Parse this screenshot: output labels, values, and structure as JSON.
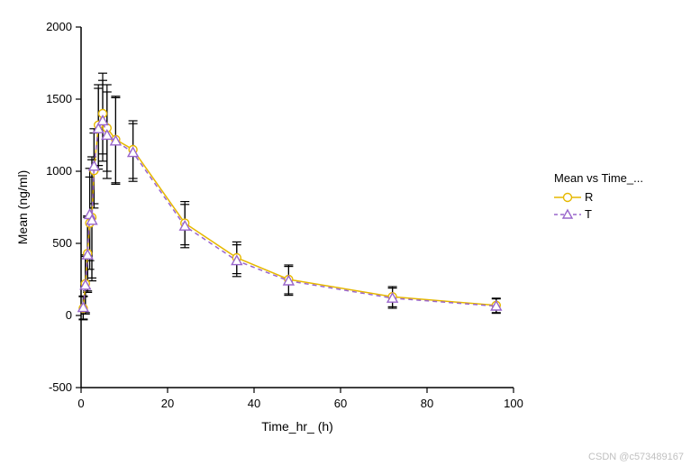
{
  "chart": {
    "type": "line-errorbar",
    "xlabel": "Time_hr_ (h)",
    "ylabel": "Mean (ng/ml)",
    "label_fontsize": 14,
    "tick_fontsize": 13,
    "xlim": [
      0,
      100
    ],
    "ylim": [
      -500,
      2000
    ],
    "xticks": [
      0,
      20,
      40,
      60,
      80,
      100
    ],
    "yticks": [
      -500,
      0,
      500,
      1000,
      1500,
      2000
    ],
    "background_color": "#ffffff",
    "axis_color": "#000000",
    "tick_color": "#000000",
    "errorbar_color": "#000000",
    "errorbar_capwidth": 10,
    "errorbar_linewidth": 1.2,
    "series": [
      {
        "name": "R",
        "color": "#e6b800",
        "line_style": "solid",
        "line_width": 1.5,
        "marker": "circle",
        "marker_size": 9,
        "marker_fill": "#ffffff",
        "x": [
          0.5,
          1,
          1.5,
          2,
          2.5,
          3,
          4,
          5,
          6,
          8,
          12,
          24,
          36,
          48,
          72,
          96
        ],
        "y": [
          50,
          220,
          430,
          640,
          680,
          1005,
          1320,
          1400,
          1300,
          1220,
          1150,
          640,
          400,
          250,
          130,
          70
        ],
        "err": [
          80,
          200,
          260,
          320,
          420,
          260,
          280,
          280,
          300,
          300,
          200,
          150,
          110,
          100,
          70,
          50
        ]
      },
      {
        "name": "T",
        "color": "#9966cc",
        "line_style": "dashed",
        "line_width": 1.5,
        "marker": "triangle",
        "marker_size": 10,
        "marker_fill": "#ffffff",
        "x": [
          0.5,
          1,
          1.5,
          2,
          2.5,
          3,
          4,
          5,
          6,
          8,
          12,
          24,
          36,
          48,
          72,
          96
        ],
        "y": [
          55,
          210,
          420,
          700,
          660,
          1035,
          1295,
          1350,
          1250,
          1210,
          1130,
          620,
          380,
          240,
          120,
          65
        ],
        "err": [
          80,
          200,
          260,
          320,
          420,
          260,
          280,
          280,
          300,
          300,
          200,
          150,
          110,
          100,
          70,
          50
        ]
      }
    ]
  },
  "legend": {
    "title": "Mean vs Time_...",
    "items": [
      {
        "label": "R",
        "color": "#e6b800",
        "marker": "circle",
        "line_style": "solid"
      },
      {
        "label": "T",
        "color": "#9966cc",
        "marker": "triangle",
        "line_style": "dashed"
      }
    ]
  },
  "watermark": "CSDN @c573489167"
}
